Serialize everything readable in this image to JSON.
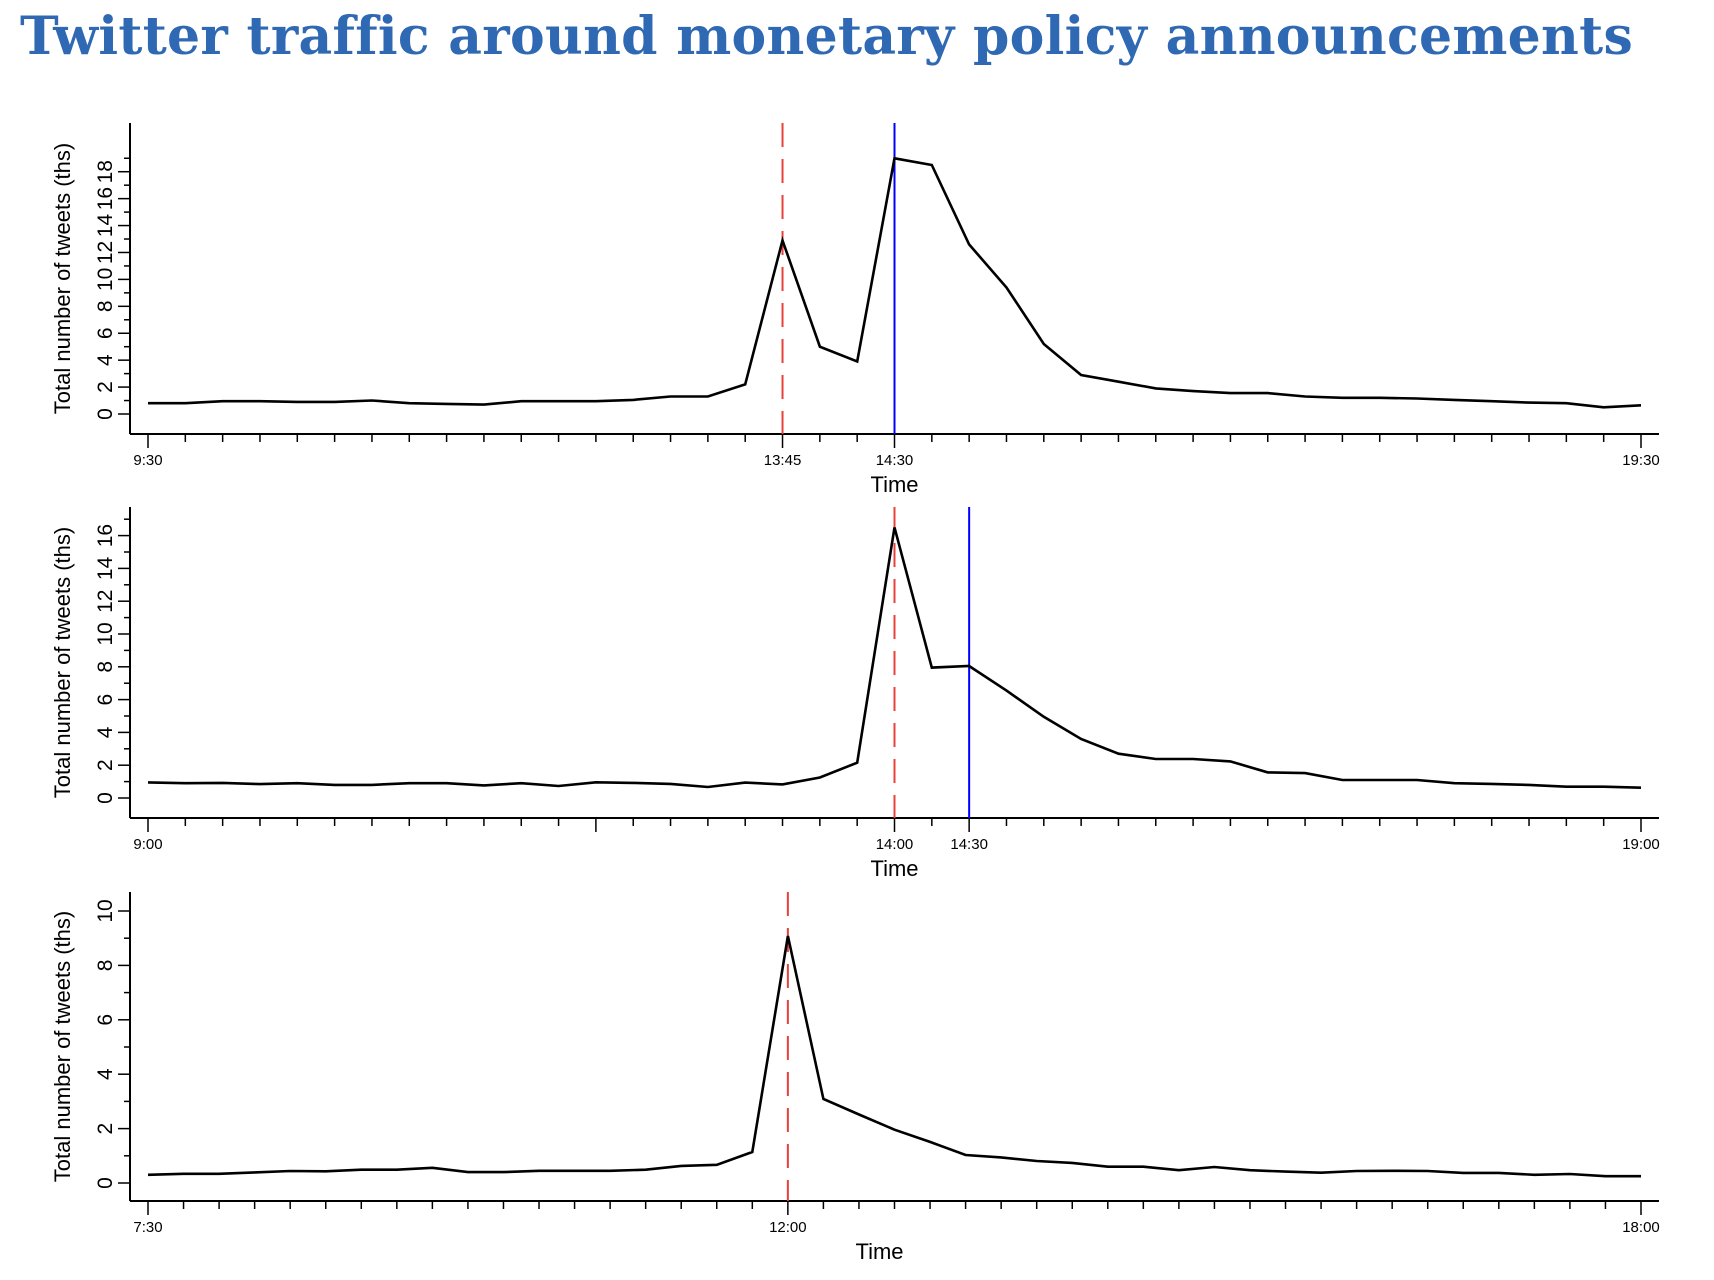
{
  "title": "Twitter traffic around monetary policy announcements",
  "colors": {
    "title": "#2F68B3",
    "series": "#000000",
    "announcement_line": "#E8403A",
    "press_conference_line": "#0000FF"
  },
  "chart_data": [
    {
      "type": "line",
      "title": "",
      "xlabel": "Time",
      "ylabel": "Total number of tweets (ths)",
      "x_start": "9:30",
      "x_end": "19:30",
      "interval_minutes": 15,
      "x_tick_labels": [
        {
          "label": "9:30",
          "index": 0
        },
        {
          "label": "13:45",
          "index": 17
        },
        {
          "label": "14:30",
          "index": 20
        },
        {
          "label": "19:30",
          "index": 40
        }
      ],
      "y_ticks": [
        0,
        2,
        4,
        6,
        8,
        10,
        12,
        14,
        16,
        18
      ],
      "y_minor_step": 1,
      "ylim": [
        -1.5,
        19.5
      ],
      "grid": false,
      "vlines": [
        {
          "x_index": 17,
          "label": "13:45",
          "style": "dashed",
          "color": "#E8403A"
        },
        {
          "x_index": 20,
          "label": "14:30",
          "style": "solid",
          "color": "#0000FF"
        }
      ],
      "x": [
        "9:30",
        "9:45",
        "10:00",
        "10:15",
        "10:30",
        "10:45",
        "11:00",
        "11:15",
        "11:30",
        "11:45",
        "12:00",
        "12:15",
        "12:30",
        "12:45",
        "13:00",
        "13:15",
        "13:30",
        "13:45",
        "14:00",
        "14:15",
        "14:30",
        "14:45",
        "15:00",
        "15:15",
        "15:30",
        "15:45",
        "16:00",
        "16:15",
        "16:30",
        "16:45",
        "17:00",
        "17:15",
        "17:30",
        "17:45",
        "18:00",
        "18:15",
        "18:30",
        "18:45",
        "19:00",
        "19:15",
        "19:30"
      ],
      "values": [
        0.8,
        0.8,
        0.95,
        0.95,
        0.9,
        0.9,
        1.0,
        0.8,
        0.75,
        0.7,
        0.95,
        0.95,
        0.95,
        1.05,
        1.3,
        1.3,
        2.2,
        12.9,
        5.0,
        3.9,
        19.0,
        18.5,
        12.6,
        9.4,
        5.2,
        2.9,
        2.4,
        1.9,
        1.7,
        1.55,
        1.55,
        1.3,
        1.2,
        1.2,
        1.15,
        1.05,
        0.95,
        0.85,
        0.8,
        0.5,
        0.65
      ]
    },
    {
      "type": "line",
      "title": "",
      "xlabel": "Time",
      "ylabel": "Total number of tweets (ths)",
      "x_start": "9:00",
      "x_end": "19:00",
      "interval_minutes": 15,
      "x_tick_labels": [
        {
          "label": "9:00",
          "index": 0
        },
        {
          "label": "14:00",
          "index": 20
        },
        {
          "label": "14:30",
          "index": 22
        },
        {
          "label": "19:00",
          "index": 40
        }
      ],
      "long_ticks": [
        12
      ],
      "y_ticks": [
        0,
        2,
        4,
        6,
        8,
        10,
        12,
        14,
        16
      ],
      "y_minor_step": 1,
      "ylim": [
        -1.2,
        17.8
      ],
      "grid": false,
      "vlines": [
        {
          "x_index": 20,
          "label": "14:00",
          "style": "dashed",
          "color": "#E8403A"
        },
        {
          "x_index": 22,
          "label": "14:30",
          "style": "solid",
          "color": "#0000FF"
        }
      ],
      "x": [
        "9:00",
        "9:15",
        "9:30",
        "9:45",
        "10:00",
        "10:15",
        "10:30",
        "10:45",
        "11:00",
        "11:15",
        "11:30",
        "11:45",
        "12:00",
        "12:15",
        "12:30",
        "12:45",
        "13:00",
        "13:15",
        "13:30",
        "13:45",
        "14:00",
        "14:15",
        "14:30",
        "14:45",
        "15:00",
        "15:15",
        "15:30",
        "15:45",
        "16:00",
        "16:15",
        "16:30",
        "16:45",
        "17:00",
        "17:15",
        "17:30",
        "17:45",
        "18:00",
        "18:15",
        "18:30",
        "18:45",
        "19:00"
      ],
      "values": [
        0.95,
        0.9,
        0.92,
        0.85,
        0.9,
        0.8,
        0.8,
        0.9,
        0.9,
        0.77,
        0.9,
        0.73,
        0.96,
        0.92,
        0.86,
        0.67,
        0.94,
        0.83,
        1.25,
        2.15,
        16.5,
        7.95,
        8.05,
        6.55,
        4.95,
        3.6,
        2.7,
        2.38,
        2.38,
        2.23,
        1.56,
        1.52,
        1.1,
        1.1,
        1.1,
        0.9,
        0.86,
        0.8,
        0.69,
        0.69,
        0.63
      ]
    },
    {
      "type": "line",
      "title": "",
      "xlabel": "Time",
      "ylabel": "Total number of tweets (ths)",
      "x_start": "7:30",
      "x_end": "18:00",
      "interval_minutes": 15,
      "x_tick_labels": [
        {
          "label": "7:30",
          "index": 0
        },
        {
          "label": "12:00",
          "index": 18
        },
        {
          "label": "18:00",
          "index": 42
        }
      ],
      "y_ticks": [
        0,
        2,
        4,
        6,
        8,
        10
      ],
      "y_minor_step": 1,
      "ylim": [
        -0.7,
        10.7
      ],
      "grid": false,
      "vlines": [
        {
          "x_index": 18,
          "label": "12:00",
          "style": "dashed",
          "color": "#E8403A"
        }
      ],
      "x": [
        "7:30",
        "7:45",
        "8:00",
        "8:15",
        "8:30",
        "8:45",
        "9:00",
        "9:15",
        "9:30",
        "9:45",
        "10:00",
        "10:15",
        "10:30",
        "10:45",
        "11:00",
        "11:15",
        "11:30",
        "11:45",
        "12:00",
        "12:15",
        "12:30",
        "12:45",
        "13:00",
        "13:15",
        "13:30",
        "13:45",
        "14:00",
        "14:15",
        "14:30",
        "14:45",
        "15:00",
        "15:15",
        "15:30",
        "15:45",
        "16:00",
        "16:15",
        "16:30",
        "16:45",
        "17:00",
        "17:15",
        "17:30",
        "17:45",
        "18:00"
      ],
      "values": [
        0.3,
        0.34,
        0.34,
        0.39,
        0.44,
        0.43,
        0.49,
        0.49,
        0.56,
        0.4,
        0.4,
        0.45,
        0.45,
        0.45,
        0.49,
        0.63,
        0.67,
        1.14,
        9.08,
        3.09,
        2.52,
        1.96,
        1.51,
        1.03,
        0.94,
        0.81,
        0.74,
        0.6,
        0.6,
        0.47,
        0.59,
        0.47,
        0.42,
        0.38,
        0.44,
        0.45,
        0.44,
        0.37,
        0.37,
        0.3,
        0.33,
        0.25,
        0.25
      ]
    }
  ]
}
